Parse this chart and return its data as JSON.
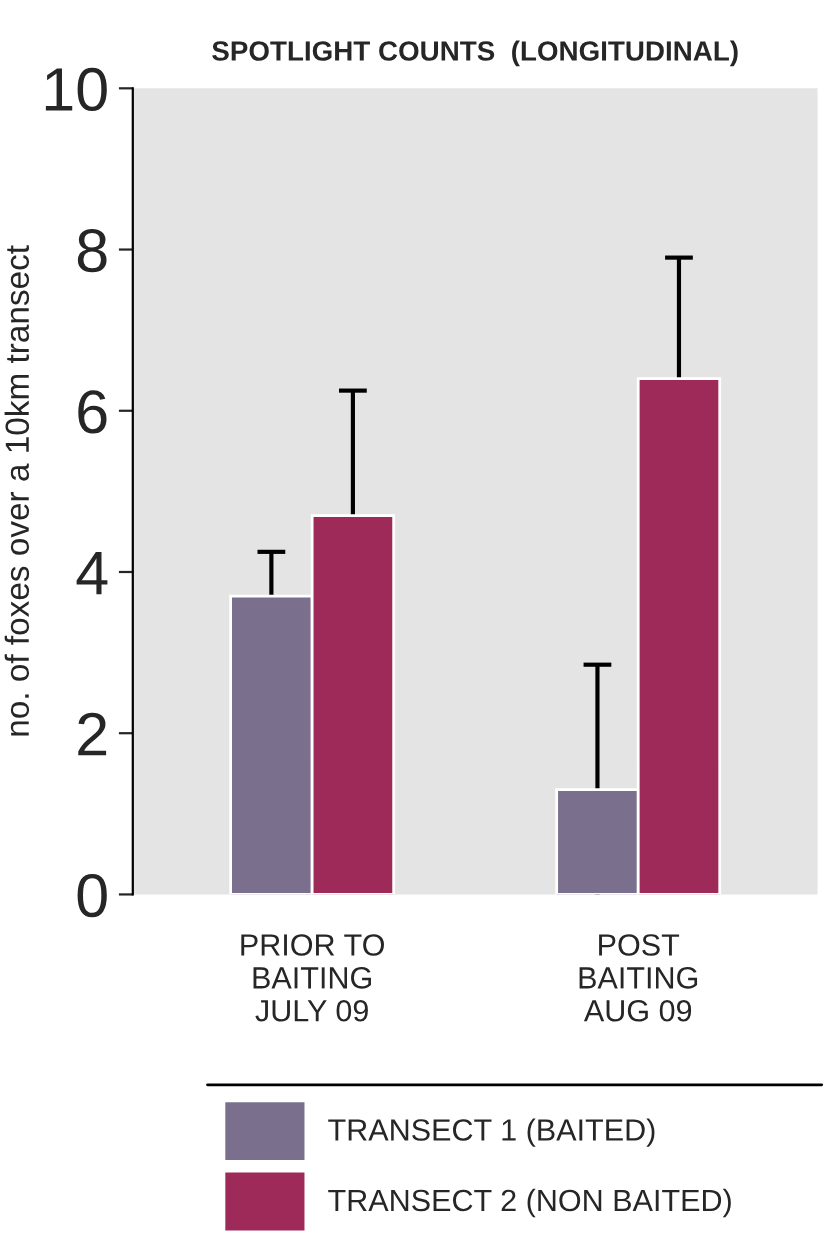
{
  "chart_data": {
    "type": "bar",
    "title": "SPOTLIGHT COUNTS  (LONGITUDINAL)",
    "ylabel": "no. of foxes over a 10km transect",
    "categories": [
      "PRIOR TO\nBAITING\nJULY 09",
      "POST\nBAITING\nAUG 09"
    ],
    "series": [
      {
        "name": "TRANSECT 1 (BAITED)",
        "color": "#7a6f8c",
        "values": [
          3.7,
          1.3
        ],
        "errors": [
          0.55,
          1.55
        ]
      },
      {
        "name": "TRANSECT 2 (NON BAITED)",
        "color": "#9e2a5a",
        "values": [
          4.7,
          6.4
        ],
        "errors": [
          1.55,
          1.5
        ]
      }
    ],
    "ylim": [
      0,
      10
    ],
    "yticks": [
      0,
      2,
      4,
      6,
      8,
      10
    ],
    "grid": false,
    "legend": "bottom"
  }
}
